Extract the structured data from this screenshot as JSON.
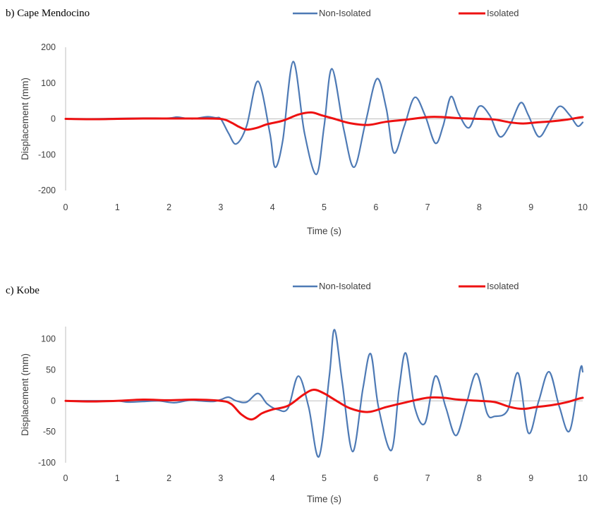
{
  "chart_data": [
    {
      "type": "line",
      "panel_label": "b) Cape Mendocino",
      "xlabel": "Time (s)",
      "ylabel": "Displacement (mm)",
      "xlim": [
        0,
        10
      ],
      "ylim": [
        -200,
        200
      ],
      "x_ticks": [
        "0",
        "1",
        "2",
        "3",
        "4",
        "5",
        "6",
        "7",
        "8",
        "9",
        "10"
      ],
      "y_ticks": [
        "200",
        "100",
        "0",
        "-100",
        "-200"
      ],
      "y_tick_values": [
        200,
        100,
        0,
        -100,
        -200
      ],
      "legend_position": "top",
      "grid": false,
      "series": [
        {
          "name": "Non-Isolated",
          "color": "#4E7AB5",
          "x": [
            0,
            0.5,
            1.0,
            1.5,
            2.0,
            2.15,
            2.3,
            2.45,
            2.6,
            2.75,
            2.9,
            3.0,
            3.15,
            3.3,
            3.5,
            3.72,
            3.95,
            4.05,
            4.2,
            4.4,
            4.62,
            4.85,
            5.0,
            5.15,
            5.38,
            5.58,
            5.8,
            6.02,
            6.2,
            6.35,
            6.55,
            6.75,
            6.95,
            7.15,
            7.3,
            7.45,
            7.6,
            7.8,
            8.0,
            8.2,
            8.4,
            8.6,
            8.8,
            8.95,
            9.15,
            9.35,
            9.55,
            9.75,
            9.9,
            10.0
          ],
          "y": [
            0,
            0,
            1,
            2,
            2,
            5,
            2,
            0,
            3,
            6,
            3,
            0,
            -40,
            -70,
            -20,
            105,
            -40,
            -135,
            -60,
            160,
            -40,
            -155,
            -20,
            140,
            -30,
            -135,
            -10,
            112,
            30,
            -95,
            -20,
            60,
            10,
            -68,
            -20,
            62,
            15,
            -25,
            35,
            10,
            -50,
            -15,
            45,
            10,
            -50,
            -10,
            35,
            10,
            -20,
            -10
          ]
        },
        {
          "name": "Isolated",
          "color": "#EE1111",
          "x": [
            0,
            0.5,
            1.0,
            1.5,
            2.0,
            2.5,
            3.0,
            3.2,
            3.35,
            3.5,
            3.7,
            3.9,
            4.2,
            4.5,
            4.75,
            4.95,
            5.2,
            5.5,
            5.85,
            6.2,
            6.6,
            7.0,
            7.3,
            7.6,
            8.0,
            8.3,
            8.6,
            8.85,
            9.1,
            9.4,
            9.7,
            9.9,
            10.0
          ],
          "y": [
            0,
            -1,
            0,
            1,
            1,
            1,
            0,
            -10,
            -22,
            -30,
            -25,
            -15,
            -5,
            12,
            18,
            10,
            0,
            -12,
            -17,
            -8,
            -2,
            5,
            5,
            2,
            0,
            -2,
            -10,
            -13,
            -10,
            -7,
            -2,
            3,
            5
          ]
        }
      ]
    },
    {
      "type": "line",
      "panel_label": "c) Kobe",
      "xlabel": "Time (s)",
      "ylabel": "Displacement (mm)",
      "xlim": [
        0,
        10
      ],
      "ylim": [
        -100,
        120
      ],
      "x_ticks": [
        "0",
        "1",
        "2",
        "3",
        "4",
        "5",
        "6",
        "7",
        "8",
        "9",
        "10"
      ],
      "y_ticks": [
        "100",
        "50",
        "0",
        "-50",
        "-100"
      ],
      "y_tick_values": [
        100,
        50,
        0,
        -50,
        -100
      ],
      "legend_position": "top",
      "grid": false,
      "series": [
        {
          "name": "Non-Isolated",
          "color": "#4E7AB5",
          "x": [
            0,
            0.5,
            1.0,
            1.2,
            1.5,
            1.8,
            2.1,
            2.4,
            2.6,
            2.85,
            3.0,
            3.15,
            3.3,
            3.5,
            3.72,
            3.9,
            4.1,
            4.3,
            4.5,
            4.7,
            4.9,
            5.1,
            5.2,
            5.35,
            5.55,
            5.75,
            5.9,
            6.05,
            6.3,
            6.45,
            6.58,
            6.75,
            6.95,
            7.15,
            7.35,
            7.55,
            7.75,
            7.95,
            8.15,
            8.3,
            8.55,
            8.75,
            8.95,
            9.15,
            9.35,
            9.55,
            9.75,
            9.95,
            10.0
          ],
          "y": [
            0,
            0,
            0,
            -2,
            -1,
            0,
            -3,
            1,
            0,
            -1,
            2,
            6,
            0,
            -2,
            12,
            -5,
            -14,
            -12,
            40,
            -10,
            -90,
            40,
            115,
            30,
            -82,
            20,
            76,
            -10,
            -80,
            20,
            77,
            -10,
            -36,
            40,
            -10,
            -56,
            -5,
            44,
            -20,
            -25,
            -15,
            45,
            -52,
            0,
            47,
            -10,
            -48,
            50,
            47
          ]
        },
        {
          "name": "Isolated",
          "color": "#EE1111",
          "x": [
            0,
            0.5,
            1.0,
            1.5,
            2.0,
            2.5,
            3.0,
            3.2,
            3.4,
            3.6,
            3.8,
            4.0,
            4.3,
            4.6,
            4.8,
            5.0,
            5.2,
            5.5,
            5.85,
            6.2,
            6.6,
            7.0,
            7.3,
            7.6,
            8.0,
            8.3,
            8.6,
            8.85,
            9.1,
            9.4,
            9.7,
            9.9,
            10.0
          ],
          "y": [
            0,
            -1,
            0,
            2,
            1,
            2,
            0,
            -5,
            -22,
            -30,
            -20,
            -14,
            -8,
            10,
            18,
            12,
            2,
            -12,
            -18,
            -10,
            -2,
            5,
            5,
            2,
            0,
            -2,
            -10,
            -13,
            -10,
            -7,
            -2,
            3,
            5
          ]
        }
      ]
    }
  ]
}
